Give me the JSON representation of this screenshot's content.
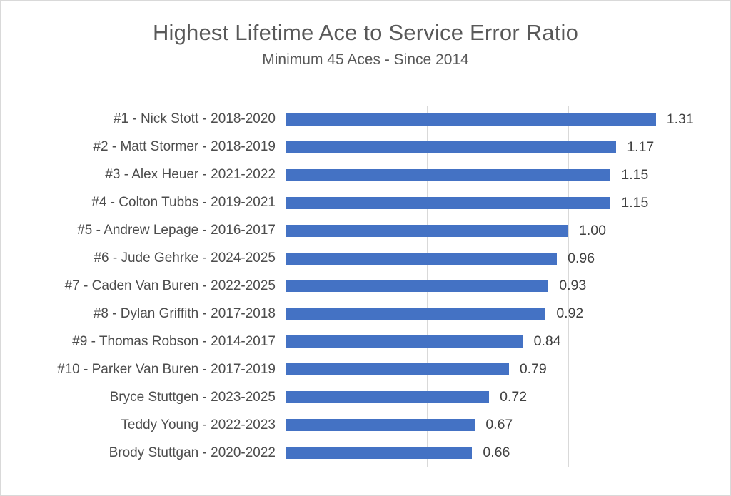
{
  "chart_data": {
    "type": "bar",
    "orientation": "horizontal",
    "title": "Highest Lifetime Ace to Service Error Ratio",
    "subtitle": "Minimum 45 Aces - Since 2014",
    "categories": [
      "#1 - Nick Stott - 2018-2020",
      "#2 - Matt Stormer - 2018-2019",
      "#3 - Alex Heuer - 2021-2022",
      "#4 - Colton Tubbs - 2019-2021",
      "#5 - Andrew Lepage - 2016-2017",
      "#6 - Jude Gehrke - 2024-2025",
      "#7 - Caden Van Buren - 2022-2025",
      "#8 - Dylan Griffith - 2017-2018",
      "#9 - Thomas Robson - 2014-2017",
      "#10 - Parker Van Buren - 2017-2019",
      "Bryce Stuttgen - 2023-2025",
      "Teddy Young - 2022-2023",
      "Brody Stuttgan - 2020-2022"
    ],
    "values": [
      1.31,
      1.17,
      1.15,
      1.15,
      1.0,
      0.96,
      0.93,
      0.92,
      0.84,
      0.79,
      0.72,
      0.67,
      0.66
    ],
    "value_labels": [
      "1.31",
      "1.17",
      "1.15",
      "1.15",
      "1.00",
      "0.96",
      "0.93",
      "0.92",
      "0.84",
      "0.79",
      "0.72",
      "0.67",
      "0.66"
    ],
    "xlabel": "",
    "ylabel": "",
    "xlim": [
      0,
      1.5
    ],
    "gridline_interval": 0.5,
    "grid": true,
    "legend_position": "none",
    "colors": {
      "bar": "#4472C4",
      "title": "#595959",
      "category_label": "#4d4d4d",
      "value_label": "#404040",
      "gridline": "#d9d9d9",
      "axis_line": "#c9c9c9",
      "background": "#ffffff",
      "page_border": "#d9d9d9"
    }
  }
}
